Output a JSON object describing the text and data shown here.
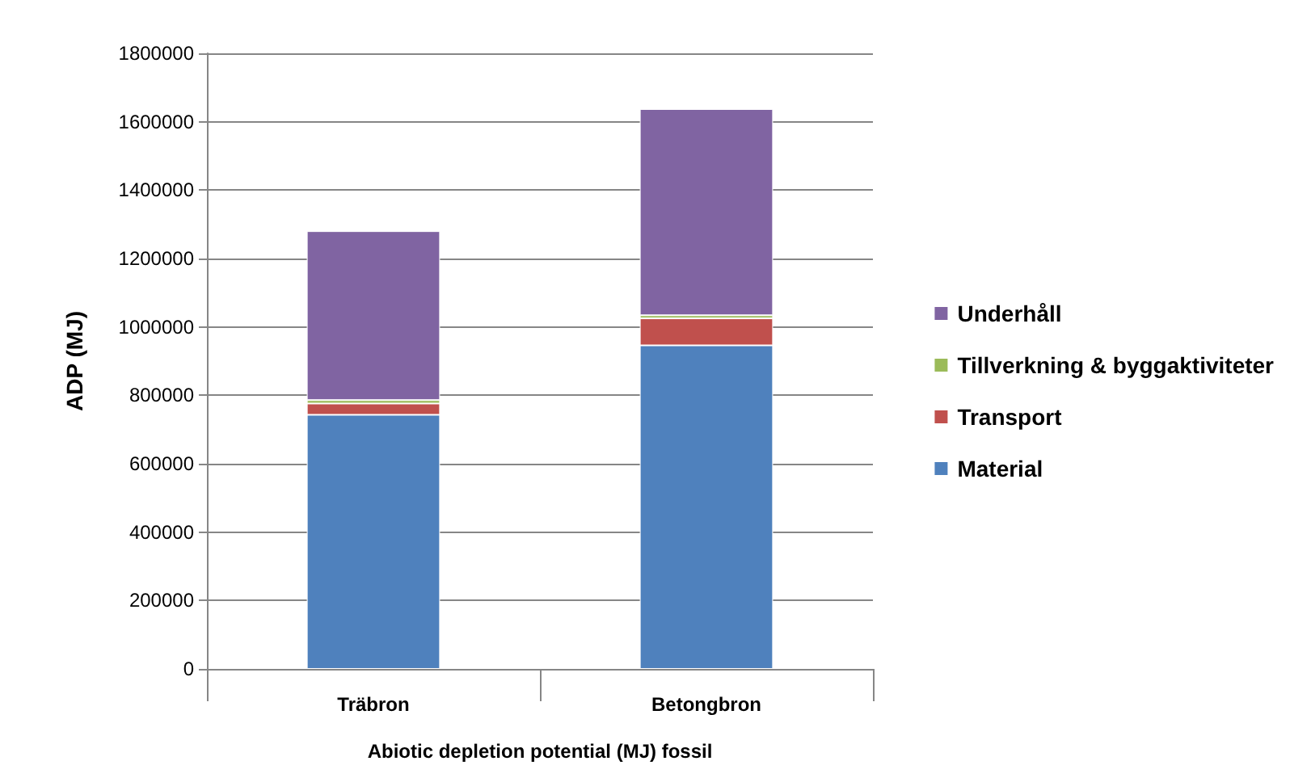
{
  "chart_data": {
    "type": "bar",
    "stacked": true,
    "xlabel": "Abiotic depletion potential (MJ) fossil",
    "ylabel": "ADP (MJ)",
    "categories": [
      "Träbron",
      "Betongbron"
    ],
    "series": [
      {
        "name": "Material",
        "color": "#4f81bd",
        "values": [
          743000,
          946000
        ]
      },
      {
        "name": "Transport",
        "color": "#c0504d",
        "values": [
          33000,
          79000
        ]
      },
      {
        "name": "Tillverkning & byggaktiviteter",
        "color": "#9bbb59",
        "values": [
          10000,
          9000
        ]
      },
      {
        "name": "Underhåll",
        "color": "#8064a2",
        "values": [
          494000,
          603000
        ]
      }
    ],
    "ylim": [
      0,
      1800000
    ],
    "yticks": [
      0,
      200000,
      400000,
      600000,
      800000,
      1000000,
      1200000,
      1400000,
      1600000,
      1800000
    ],
    "grid": "y",
    "legend": "right"
  }
}
